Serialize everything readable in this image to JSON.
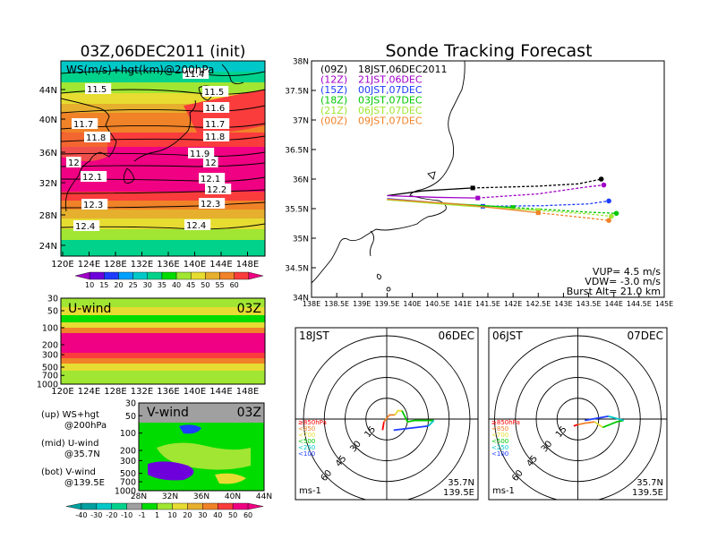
{
  "colors": {
    "scale": [
      "#a000c8",
      "#6e00dc",
      "#1e3cff",
      "#00a0ff",
      "#00c8c8",
      "#00d28c",
      "#00dc00",
      "#a0e632",
      "#e6dc32",
      "#e6af2d",
      "#f08228",
      "#fa3c3c",
      "#f00082"
    ],
    "vscale": [
      "#00a0a0",
      "#00c8c8",
      "#00d28c",
      "#a0a0a0",
      "#00dc00",
      "#a0e632",
      "#e6dc32",
      "#e6af2d",
      "#f08228",
      "#fa3c3c",
      "#f00082"
    ],
    "track": [
      "#000000",
      "#a000c8",
      "#1e3cff",
      "#00c800",
      "#a0e632",
      "#f08228"
    ]
  },
  "left": {
    "title": "03Z,06DEC2011 (init)",
    "map_label": "WS(m/s)+hgt(km)@200hPa",
    "lat_ticks": [
      "44N",
      "40N",
      "36N",
      "32N",
      "28N",
      "24N"
    ],
    "lon_ticks": [
      "120E",
      "124E",
      "128E",
      "132E",
      "136E",
      "140E",
      "144E",
      "148E"
    ],
    "contour_labels": [
      "11.4",
      "11.5",
      "11.5",
      "11.6",
      "11.7",
      "11.7",
      "11.8",
      "11.8",
      "11.9",
      "12",
      "12",
      "12.1",
      "12.1",
      "12.2",
      "12.3",
      "12.3",
      "12.4",
      "12.4"
    ],
    "colorbar_labels": [
      "10",
      "15",
      "20",
      "25",
      "30",
      "35",
      "40",
      "45",
      "50",
      "55",
      "60"
    ],
    "uwind_label": "U-wind",
    "uwind_time": "03Z",
    "p_ticks": [
      "30",
      "50",
      "100",
      "200",
      "300",
      "500",
      "700",
      "1000"
    ],
    "vwind_label": "V-wind",
    "vwind_time": "03Z",
    "vwind_lat_ticks": [
      "28N",
      "32N",
      "36N",
      "40N",
      "44N"
    ],
    "vcolorbar_labels": [
      "-40",
      "-30",
      "-20",
      "-10",
      "-1",
      "1",
      "10",
      "20",
      "30",
      "40",
      "50",
      "60"
    ],
    "legend": [
      {
        "a": "(up) WS+hgt",
        "b": "@200hPa"
      },
      {
        "a": "(mid) U-wind",
        "b": "@35.7N"
      },
      {
        "a": "(bot) V-wind",
        "b": "@139.5E"
      }
    ]
  },
  "right": {
    "title": "Sonde Tracking Forecast",
    "lat_ticks": [
      "38N",
      "37.5N",
      "37N",
      "36.5N",
      "36N",
      "35.5N",
      "35N",
      "34.5N",
      "34N"
    ],
    "lon_ticks": [
      "138E",
      "138.5E",
      "139E",
      "139.5E",
      "140E",
      "140.5E",
      "141E",
      "141.5E",
      "142E",
      "142.5E",
      "143E",
      "143.5E",
      "144E",
      "144.5E",
      "145E"
    ],
    "launches": [
      {
        "utc": "(09Z)",
        "jst": "18JST,06DEC2011"
      },
      {
        "utc": "(12Z)",
        "jst": "21JST,06DEC"
      },
      {
        "utc": "(15Z)",
        "jst": "00JST,07DEC"
      },
      {
        "utc": "(18Z)",
        "jst": "03JST,07DEC"
      },
      {
        "utc": "(21Z)",
        "jst": "06JST,07DEC"
      },
      {
        "utc": "(00Z)",
        "jst": "09JST,07DEC"
      }
    ],
    "vup": "VUP=  4.5  m/s",
    "vdw": "VDW= -3.0  m/s",
    "burst": "Burst Alt= 21.0  km"
  },
  "hodo": [
    {
      "time": "18JST",
      "date": "06DEC",
      "ring_labels": [
        "15",
        "30",
        "45",
        "60"
      ],
      "loc1": "35.7N",
      "loc2": "139.5E",
      "unit": "ms-1"
    },
    {
      "time": "06JST",
      "date": "07DEC",
      "ring_labels": [
        "15",
        "30",
        "45",
        "60"
      ],
      "loc1": "35.7N",
      "loc2": "139.5E",
      "unit": "ms-1"
    }
  ],
  "hodo_levels": [
    "≥850hPa",
    "<850",
    "<700",
    "<500",
    "<250",
    "<100"
  ],
  "chart_data": [
    {
      "type": "heatmap",
      "title": "03Z,06DEC2011 (init)",
      "subtitle": "WS(m/s)+hgt(km)@200hPa",
      "x_range": [
        120,
        150
      ],
      "y_range": [
        22,
        47
      ],
      "colorbar": [
        10,
        15,
        20,
        25,
        30,
        35,
        40,
        45,
        50,
        55,
        60
      ],
      "contour_labels_km": [
        11.4,
        11.5,
        11.6,
        11.7,
        11.8,
        11.9,
        12,
        12.1,
        12.2,
        12.3,
        12.4
      ]
    },
    {
      "type": "line",
      "title": "Sonde Tracking Forecast",
      "xlim": [
        138,
        145
      ],
      "ylim": [
        34,
        38
      ],
      "launch": {
        "lon": 139.5,
        "lat": 35.7
      },
      "series": [
        {
          "name": "(09Z) 18JST,06DEC2011",
          "points": [
            [
              139.5,
              35.72
            ],
            [
              140.2,
              35.8
            ],
            [
              141.2,
              35.85
            ],
            [
              142.5,
              35.88
            ],
            [
              143.3,
              35.92
            ],
            [
              143.75,
              36.0
            ]
          ]
        },
        {
          "name": "(12Z) 21JST,06DEC",
          "points": [
            [
              139.5,
              35.72
            ],
            [
              140.5,
              35.69
            ],
            [
              141.3,
              35.68
            ],
            [
              142.5,
              35.75
            ],
            [
              143.4,
              35.86
            ],
            [
              143.8,
              35.9
            ]
          ]
        },
        {
          "name": "(15Z) 00JST,07DEC",
          "points": [
            [
              139.5,
              35.67
            ],
            [
              140.5,
              35.6
            ],
            [
              141.4,
              35.54
            ],
            [
              142.6,
              35.55
            ],
            [
              143.5,
              35.58
            ],
            [
              143.9,
              35.63
            ]
          ]
        },
        {
          "name": "(18Z) 03JST,07DEC",
          "points": [
            [
              139.5,
              35.65
            ],
            [
              140.5,
              35.6
            ],
            [
              142.0,
              35.52
            ],
            [
              143.5,
              35.44
            ],
            [
              144.05,
              35.42
            ]
          ]
        },
        {
          "name": "(21Z) 06JST,07DEC",
          "points": [
            [
              139.5,
              35.65
            ],
            [
              141.0,
              35.55
            ],
            [
              142.5,
              35.47
            ],
            [
              143.5,
              35.41
            ],
            [
              143.95,
              35.37
            ]
          ]
        },
        {
          "name": "(00Z) 09JST,07DEC",
          "points": [
            [
              139.5,
              35.66
            ],
            [
              141.0,
              35.57
            ],
            [
              142.5,
              35.43
            ],
            [
              143.5,
              35.34
            ],
            [
              143.9,
              35.3
            ]
          ]
        }
      ],
      "annotations": [
        "VUP= 4.5 m/s",
        "VDW= -3.0 m/s",
        "Burst Alt= 21.0 km"
      ]
    },
    {
      "type": "line",
      "title": "18JST 06DEC",
      "ring_ms": [
        15,
        30,
        45,
        60
      ],
      "series": [
        {
          "name": "≥850hPa",
          "points": [
            [
              -3,
              -8
            ],
            [
              -2,
              -2
            ]
          ]
        },
        {
          "name": "<850",
          "points": [
            [
              -2,
              -2
            ],
            [
              2,
              3
            ],
            [
              6,
              3
            ]
          ]
        },
        {
          "name": "<700",
          "points": [
            [
              6,
              3
            ],
            [
              8,
              6
            ],
            [
              11,
              6
            ]
          ]
        },
        {
          "name": "<500",
          "points": [
            [
              11,
              6
            ],
            [
              15,
              -2
            ],
            [
              20,
              -1
            ],
            [
              34,
              -1
            ]
          ]
        },
        {
          "name": "<250",
          "points": [
            [
              34,
              -1
            ],
            [
              30,
              -5
            ]
          ]
        },
        {
          "name": "<100",
          "points": [
            [
              30,
              -5
            ],
            [
              5,
              -8
            ]
          ]
        }
      ]
    },
    {
      "type": "line",
      "title": "06JST 07DEC",
      "ring_ms": [
        15,
        30,
        45,
        60
      ],
      "series": [
        {
          "name": "≥850hPa",
          "points": [
            [
              -3,
              -5
            ],
            [
              0,
              -4
            ]
          ]
        },
        {
          "name": "<850",
          "points": [
            [
              0,
              -4
            ],
            [
              5,
              -3
            ],
            [
              12,
              -2
            ]
          ]
        },
        {
          "name": "<700",
          "points": [
            [
              12,
              -2
            ],
            [
              18,
              -6
            ]
          ]
        },
        {
          "name": "<500",
          "points": [
            [
              18,
              -6
            ],
            [
              28,
              -2
            ],
            [
              33,
              -1
            ]
          ]
        },
        {
          "name": "<250",
          "points": [
            [
              33,
              -1
            ],
            [
              22,
              2
            ]
          ]
        },
        {
          "name": "<100",
          "points": [
            [
              22,
              2
            ],
            [
              5,
              -1
            ]
          ]
        }
      ]
    }
  ]
}
